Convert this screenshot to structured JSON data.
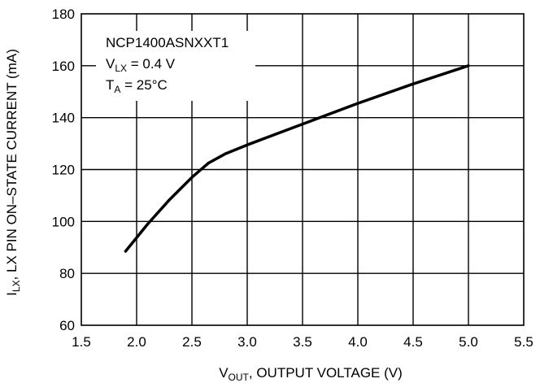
{
  "chart_data": {
    "type": "line",
    "xlabel": {
      "main": "V",
      "sub": "OUT",
      "rest": ", OUTPUT VOLTAGE (V)"
    },
    "ylabel": {
      "main": "I",
      "sub": "LX",
      "rest": ", LX PIN ON–STATE CURRENT (mA)"
    },
    "xlim": [
      1.5,
      5.5
    ],
    "ylim": [
      60,
      180
    ],
    "xticks": [
      "1.5",
      "2.0",
      "2.5",
      "3.0",
      "3.5",
      "4.0",
      "4.5",
      "5.0",
      "5.5"
    ],
    "yticks": [
      "60",
      "80",
      "100",
      "120",
      "140",
      "160",
      "180"
    ],
    "grid": true,
    "annotation": {
      "line1": "NCP1400ASNXXT1",
      "line2": {
        "main": "V",
        "sub": "LX",
        "rest": " = 0.4 V"
      },
      "line3": {
        "main": "T",
        "sub": "A",
        "rest": " = 25°C"
      }
    },
    "series": [
      {
        "x": [
          1.9,
          2.1,
          2.3,
          2.5,
          2.65,
          2.8,
          3.0,
          3.25,
          3.5,
          4.0,
          4.5,
          5.0
        ],
        "y": [
          88.5,
          99,
          108.5,
          117,
          122.5,
          126,
          129.5,
          133.5,
          137.5,
          145.5,
          153,
          160
        ]
      }
    ]
  }
}
